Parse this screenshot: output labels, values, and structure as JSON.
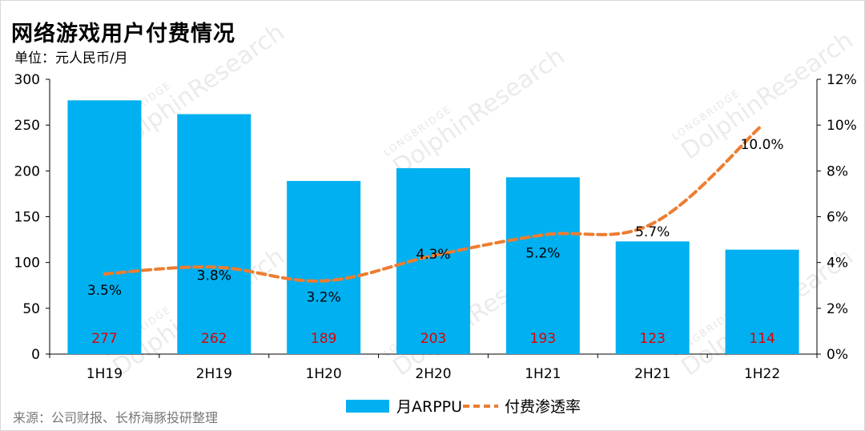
{
  "header": {
    "title": "网络游戏用户付费情况",
    "unit": "单位：元人民币/月"
  },
  "source": "来源：公司财报、长桥海豚投研整理",
  "watermark": {
    "brand": "LONGBRIDGE",
    "name": "DolphinResearch"
  },
  "colors": {
    "bar": "#00b0f0",
    "line": "#ed7d31",
    "bar_label": "#e00000"
  },
  "chart_data": {
    "type": "bar",
    "categories": [
      "1H19",
      "2H19",
      "1H20",
      "2H20",
      "1H21",
      "2H21",
      "1H22"
    ],
    "series": [
      {
        "name": "月ARPPU",
        "type": "bar",
        "axis": "left",
        "values": [
          277,
          262,
          189,
          203,
          193,
          123,
          114
        ],
        "labels": [
          "277",
          "262",
          "189",
          "203",
          "193",
          "123",
          "114"
        ]
      },
      {
        "name": "付费渗透率",
        "type": "line",
        "style": "dashed, smoothed",
        "axis": "right",
        "values": [
          3.5,
          3.8,
          3.2,
          4.3,
          5.2,
          5.7,
          10.0
        ],
        "labels": [
          "3.5%",
          "3.8%",
          "3.2%",
          "4.3%",
          "5.2%",
          "5.7%",
          "10.0%"
        ]
      }
    ],
    "y_left": {
      "min": 0,
      "max": 300,
      "ticks": [
        "0",
        "50",
        "100",
        "150",
        "200",
        "250",
        "300"
      ]
    },
    "y_right": {
      "min": 0,
      "max": 12,
      "ticks": [
        "0%",
        "2%",
        "4%",
        "6%",
        "8%",
        "10%",
        "12%"
      ]
    },
    "grid": false,
    "legend": "bottom-center"
  }
}
